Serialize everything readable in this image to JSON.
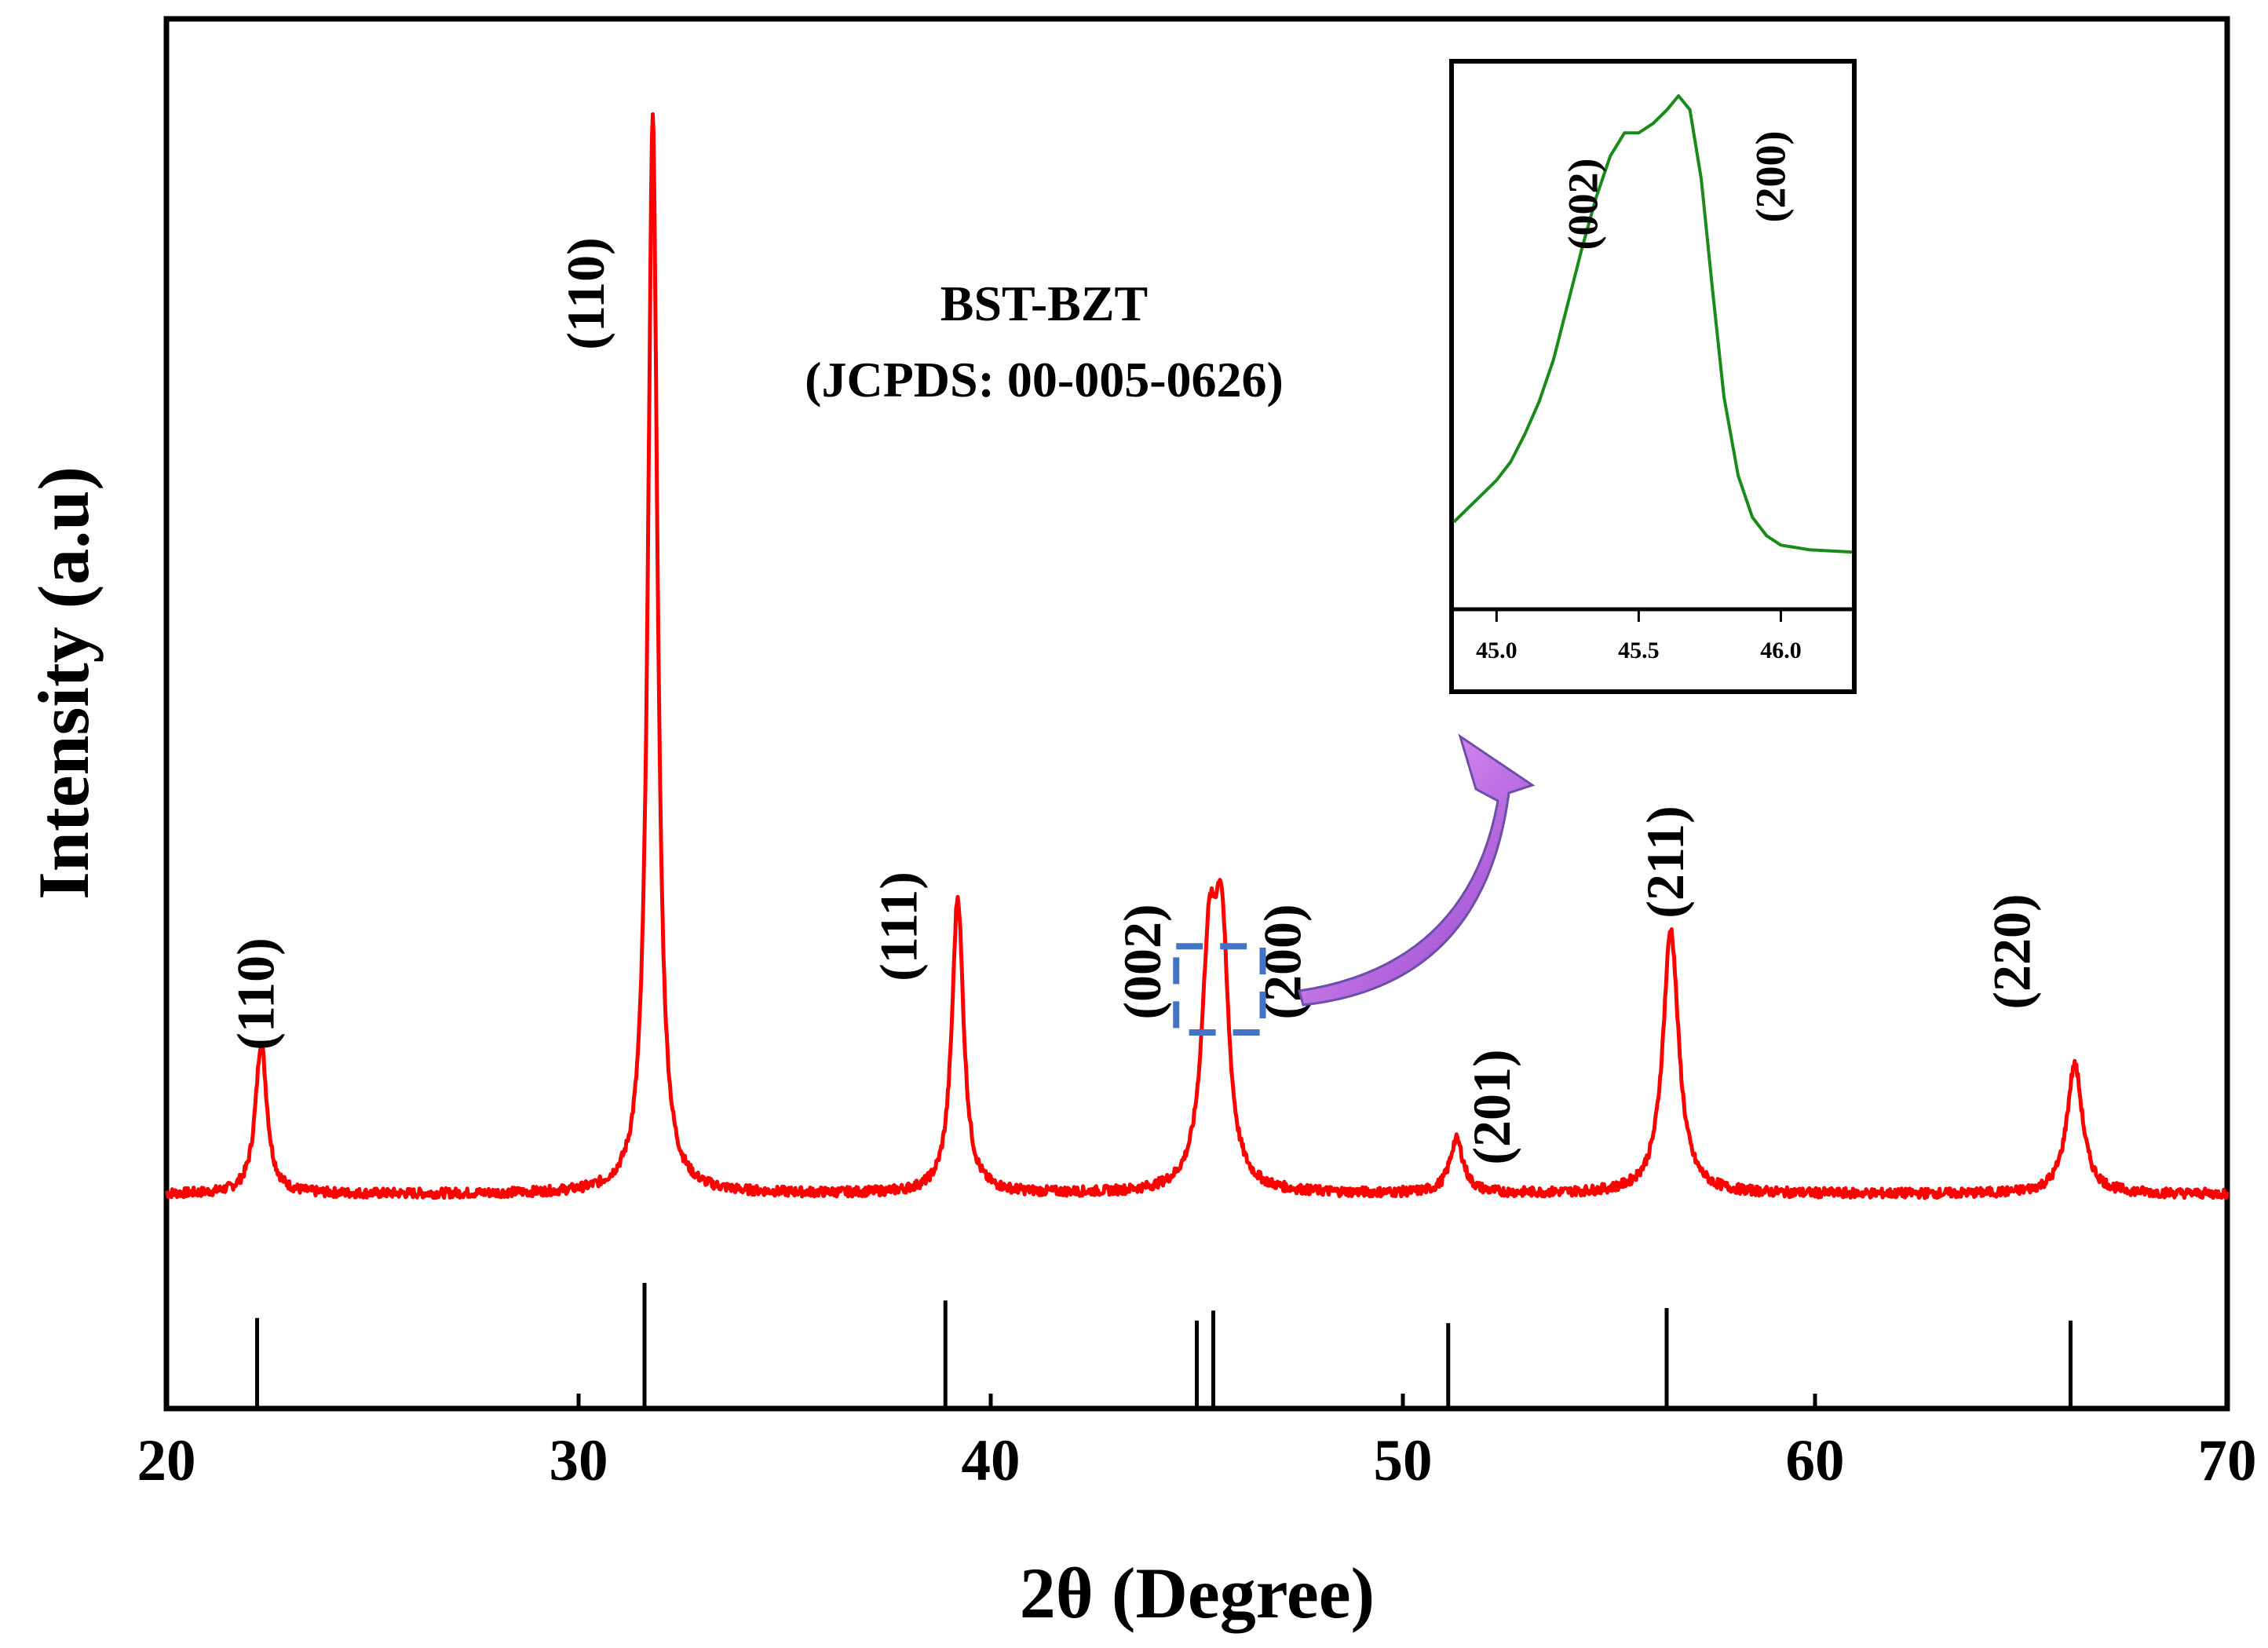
{
  "chart_data": {
    "type": "line",
    "xlabel": "2θ (Degree)",
    "ylabel": "Intensity (a.u)",
    "xlim": [
      20,
      70
    ],
    "ylim": [
      0,
      100
    ],
    "xticks": [
      20,
      30,
      40,
      50,
      60,
      70
    ],
    "xtick_labels": [
      "20",
      "30",
      "40",
      "50",
      "60",
      "70"
    ],
    "grid": false,
    "sample_label": [
      "BST-BZT",
      "(JCPDS: 00-005-0626)"
    ],
    "series": [
      {
        "name": "BST-BZT XRD pattern",
        "color": "#ff0000",
        "baseline": 0,
        "peaks": [
          {
            "x": 22.3,
            "height": 14,
            "width": 0.17
          },
          {
            "x": 31.8,
            "height": 100,
            "width": 0.14
          },
          {
            "x": 39.2,
            "height": 27.5,
            "width": 0.17
          },
          {
            "x": 45.3,
            "height": 20.5,
            "width": 0.22
          },
          {
            "x": 45.6,
            "height": 21.5,
            "width": 0.2
          },
          {
            "x": 51.3,
            "height": 5,
            "width": 0.2
          },
          {
            "x": 56.5,
            "height": 24.5,
            "width": 0.23
          },
          {
            "x": 66.3,
            "height": 12,
            "width": 0.23
          }
        ]
      }
    ],
    "reference_lines": {
      "name": "JCPDS 00-005-0626",
      "x": [
        22.2,
        31.6,
        38.9,
        45.0,
        45.4,
        51.1,
        56.4,
        66.2
      ],
      "heights": [
        0.72,
        1.0,
        0.86,
        0.7,
        0.78,
        0.68,
        0.8,
        0.7
      ]
    },
    "peak_labels": [
      {
        "text": "(110)",
        "x": 22.3
      },
      {
        "text": "(110)",
        "x": 31.8
      },
      {
        "text": "(111)",
        "x": 39.2
      },
      {
        "text": "(002)",
        "x": 45.3
      },
      {
        "text": "(200)",
        "x": 45.6
      },
      {
        "text": "(201)",
        "x": 51.3
      },
      {
        "text": "(211)",
        "x": 56.5
      },
      {
        "text": "(220)",
        "x": 66.3
      }
    ],
    "inset": {
      "type": "line",
      "xlim": [
        44.85,
        46.25
      ],
      "xticks": [
        45.0,
        45.5,
        46.0
      ],
      "xtick_labels": [
        "45.0",
        "45.5",
        "46.0"
      ],
      "color": "#1a8a1a",
      "points": [
        [
          44.85,
          0.08
        ],
        [
          44.9,
          0.11
        ],
        [
          44.95,
          0.14
        ],
        [
          45.0,
          0.17
        ],
        [
          45.05,
          0.21
        ],
        [
          45.1,
          0.27
        ],
        [
          45.15,
          0.34
        ],
        [
          45.2,
          0.43
        ],
        [
          45.25,
          0.55
        ],
        [
          45.3,
          0.67
        ],
        [
          45.35,
          0.78
        ],
        [
          45.4,
          0.87
        ],
        [
          45.45,
          0.92
        ],
        [
          45.5,
          0.92
        ],
        [
          45.55,
          0.94
        ],
        [
          45.6,
          0.97
        ],
        [
          45.64,
          1.0
        ],
        [
          45.68,
          0.97
        ],
        [
          45.72,
          0.82
        ],
        [
          45.76,
          0.58
        ],
        [
          45.8,
          0.35
        ],
        [
          45.85,
          0.18
        ],
        [
          45.9,
          0.09
        ],
        [
          45.95,
          0.05
        ],
        [
          46.0,
          0.03
        ],
        [
          46.1,
          0.02
        ],
        [
          46.25,
          0.015
        ]
      ],
      "peak_labels": [
        {
          "text": "(002)",
          "x": 45.32
        },
        {
          "text": "(200)",
          "x": 45.98
        }
      ]
    },
    "zoom_box": {
      "x0": 44.5,
      "x1": 46.6,
      "y0": 15,
      "y1": 23
    }
  }
}
